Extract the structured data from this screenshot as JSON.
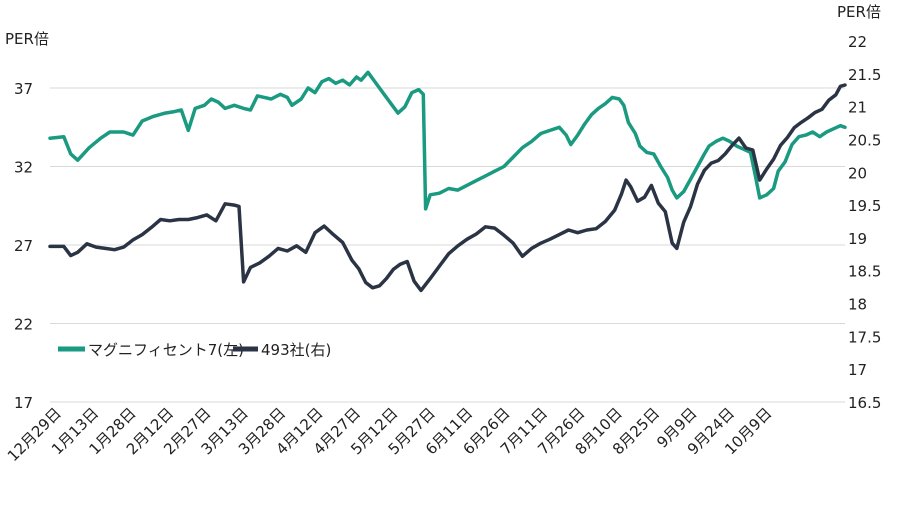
{
  "chart_data": {
    "type": "line",
    "y_left": {
      "label": "PER倍",
      "ticks": [
        17,
        22,
        27,
        32,
        37
      ],
      "range": [
        17,
        37
      ]
    },
    "y_right": {
      "label": "PER倍",
      "ticks": [
        16.5,
        17,
        17.5,
        18,
        18.5,
        19,
        19.5,
        20,
        20.5,
        21,
        21.5,
        22
      ],
      "range": [
        16.5,
        22
      ]
    },
    "x_tick_labels": [
      "12月29日",
      "1月13日",
      "1月28日",
      "2月12日",
      "2月27日",
      "3月13日",
      "3月28日",
      "4月12日",
      "4月27日",
      "5月12日",
      "5月27日",
      "6月11日",
      "6月26日",
      "7月11日",
      "7月26日",
      "8月10日",
      "8月25日",
      "9月9日",
      "9月24日",
      "10月9日"
    ],
    "grid": "horizontal",
    "legend_position": "lower-left",
    "colors": {
      "mag7": "#1a9a80",
      "rest493": "#2b3444",
      "grid": "#d9d9d9"
    },
    "series": [
      {
        "name": "マグニフィセント7(左)",
        "axis": "left",
        "values": [
          [
            0,
            33.8
          ],
          [
            6,
            33.9
          ],
          [
            9,
            32.8
          ],
          [
            12,
            32.4
          ],
          [
            17,
            33.2
          ],
          [
            22,
            33.8
          ],
          [
            26,
            34.2
          ],
          [
            32,
            34.2
          ],
          [
            36,
            34.0
          ],
          [
            40,
            34.9
          ],
          [
            45,
            35.2
          ],
          [
            50,
            35.4
          ],
          [
            54,
            35.5
          ],
          [
            57,
            35.6
          ],
          [
            60,
            34.3
          ],
          [
            63,
            35.7
          ],
          [
            67,
            35.9
          ],
          [
            70,
            36.3
          ],
          [
            73,
            36.1
          ],
          [
            76,
            35.7
          ],
          [
            80,
            35.9
          ],
          [
            84,
            35.7
          ],
          [
            87,
            35.6
          ],
          [
            90,
            36.5
          ],
          [
            93,
            36.4
          ],
          [
            96,
            36.3
          ],
          [
            100,
            36.6
          ],
          [
            103,
            36.4
          ],
          [
            105,
            35.9
          ],
          [
            109,
            36.3
          ],
          [
            112,
            37.0
          ],
          [
            115,
            36.7
          ],
          [
            118,
            37.4
          ],
          [
            121,
            37.6
          ],
          [
            124,
            37.3
          ],
          [
            127,
            37.5
          ],
          [
            130,
            37.2
          ],
          [
            133,
            37.7
          ],
          [
            135,
            37.5
          ],
          [
            138,
            38.0
          ],
          [
            140,
            37.6
          ],
          [
            142,
            37.2
          ],
          [
            145,
            36.6
          ],
          [
            148,
            36.0
          ],
          [
            151,
            35.4
          ],
          [
            154,
            35.8
          ],
          [
            157,
            36.7
          ],
          [
            160,
            36.9
          ],
          [
            162,
            36.6
          ],
          [
            163,
            29.3
          ],
          [
            165,
            30.2
          ],
          [
            169,
            30.3
          ],
          [
            173,
            30.6
          ],
          [
            177,
            30.5
          ],
          [
            181,
            30.8
          ],
          [
            185,
            31.1
          ],
          [
            189,
            31.4
          ],
          [
            193,
            31.7
          ],
          [
            197,
            32.0
          ],
          [
            201,
            32.6
          ],
          [
            205,
            33.2
          ],
          [
            209,
            33.6
          ],
          [
            213,
            34.1
          ],
          [
            217,
            34.3
          ],
          [
            221,
            34.5
          ],
          [
            224,
            34.0
          ],
          [
            226,
            33.4
          ],
          [
            229,
            34.0
          ],
          [
            232,
            34.7
          ],
          [
            235,
            35.3
          ],
          [
            238,
            35.7
          ],
          [
            241,
            36.0
          ],
          [
            244,
            36.4
          ],
          [
            247,
            36.3
          ],
          [
            249,
            35.9
          ],
          [
            251,
            34.8
          ],
          [
            254,
            34.1
          ],
          [
            256,
            33.3
          ],
          [
            259,
            32.9
          ],
          [
            262,
            32.8
          ],
          [
            265,
            32.0
          ],
          [
            268,
            31.3
          ],
          [
            270,
            30.5
          ],
          [
            272,
            30.0
          ],
          [
            275,
            30.4
          ],
          [
            278,
            31.2
          ],
          [
            281,
            32.0
          ],
          [
            284,
            32.8
          ],
          [
            286,
            33.3
          ],
          [
            289,
            33.6
          ],
          [
            292,
            33.8
          ],
          [
            295,
            33.6
          ],
          [
            298,
            33.3
          ],
          [
            301,
            33.1
          ],
          [
            304,
            32.9
          ],
          [
            306,
            31.5
          ],
          [
            308,
            30.0
          ],
          [
            311,
            30.2
          ],
          [
            314,
            30.6
          ],
          [
            316,
            31.7
          ],
          [
            319,
            32.3
          ],
          [
            322,
            33.4
          ],
          [
            325,
            33.9
          ],
          [
            328,
            34.0
          ],
          [
            331,
            34.2
          ],
          [
            334,
            33.9
          ],
          [
            337,
            34.2
          ],
          [
            340,
            34.4
          ],
          [
            343,
            34.6
          ],
          [
            345,
            34.5
          ]
        ]
      },
      {
        "name": "493社(右)",
        "axis": "right",
        "values": [
          [
            0,
            18.87
          ],
          [
            6,
            18.87
          ],
          [
            9,
            18.73
          ],
          [
            12,
            18.78
          ],
          [
            16,
            18.91
          ],
          [
            20,
            18.86
          ],
          [
            24,
            18.84
          ],
          [
            28,
            18.82
          ],
          [
            32,
            18.86
          ],
          [
            36,
            18.97
          ],
          [
            40,
            19.05
          ],
          [
            44,
            19.16
          ],
          [
            48,
            19.28
          ],
          [
            52,
            19.26
          ],
          [
            56,
            19.28
          ],
          [
            60,
            19.28
          ],
          [
            64,
            19.31
          ],
          [
            68,
            19.35
          ],
          [
            72,
            19.26
          ],
          [
            76,
            19.52
          ],
          [
            80,
            19.5
          ],
          [
            82,
            19.48
          ],
          [
            84,
            18.33
          ],
          [
            87,
            18.55
          ],
          [
            91,
            18.62
          ],
          [
            95,
            18.72
          ],
          [
            99,
            18.84
          ],
          [
            103,
            18.8
          ],
          [
            107,
            18.88
          ],
          [
            111,
            18.78
          ],
          [
            115,
            19.08
          ],
          [
            119,
            19.18
          ],
          [
            123,
            19.05
          ],
          [
            127,
            18.93
          ],
          [
            131,
            18.66
          ],
          [
            134,
            18.53
          ],
          [
            137,
            18.32
          ],
          [
            140,
            18.24
          ],
          [
            143,
            18.27
          ],
          [
            146,
            18.38
          ],
          [
            149,
            18.52
          ],
          [
            152,
            18.6
          ],
          [
            155,
            18.64
          ],
          [
            158,
            18.34
          ],
          [
            161,
            18.2
          ],
          [
            165,
            18.38
          ],
          [
            169,
            18.57
          ],
          [
            173,
            18.76
          ],
          [
            177,
            18.88
          ],
          [
            181,
            18.98
          ],
          [
            185,
            19.06
          ],
          [
            189,
            19.17
          ],
          [
            193,
            19.15
          ],
          [
            197,
            19.04
          ],
          [
            201,
            18.92
          ],
          [
            205,
            18.72
          ],
          [
            209,
            18.84
          ],
          [
            213,
            18.92
          ],
          [
            217,
            18.98
          ],
          [
            221,
            19.05
          ],
          [
            225,
            19.12
          ],
          [
            229,
            19.08
          ],
          [
            233,
            19.12
          ],
          [
            237,
            19.14
          ],
          [
            241,
            19.25
          ],
          [
            245,
            19.42
          ],
          [
            248,
            19.67
          ],
          [
            250,
            19.88
          ],
          [
            252,
            19.78
          ],
          [
            255,
            19.56
          ],
          [
            258,
            19.62
          ],
          [
            261,
            19.8
          ],
          [
            264,
            19.53
          ],
          [
            267,
            19.4
          ],
          [
            270,
            18.92
          ],
          [
            272,
            18.84
          ],
          [
            275,
            19.24
          ],
          [
            278,
            19.48
          ],
          [
            281,
            19.82
          ],
          [
            284,
            20.03
          ],
          [
            287,
            20.14
          ],
          [
            290,
            20.18
          ],
          [
            293,
            20.28
          ],
          [
            296,
            20.41
          ],
          [
            299,
            20.52
          ],
          [
            302,
            20.37
          ],
          [
            305,
            20.34
          ],
          [
            308,
            19.88
          ],
          [
            311,
            20.05
          ],
          [
            314,
            20.2
          ],
          [
            317,
            20.41
          ],
          [
            320,
            20.53
          ],
          [
            323,
            20.68
          ],
          [
            326,
            20.76
          ],
          [
            329,
            20.83
          ],
          [
            332,
            20.91
          ],
          [
            335,
            20.96
          ],
          [
            338,
            21.1
          ],
          [
            341,
            21.18
          ],
          [
            343,
            21.31
          ],
          [
            345,
            21.33
          ]
        ]
      }
    ]
  }
}
